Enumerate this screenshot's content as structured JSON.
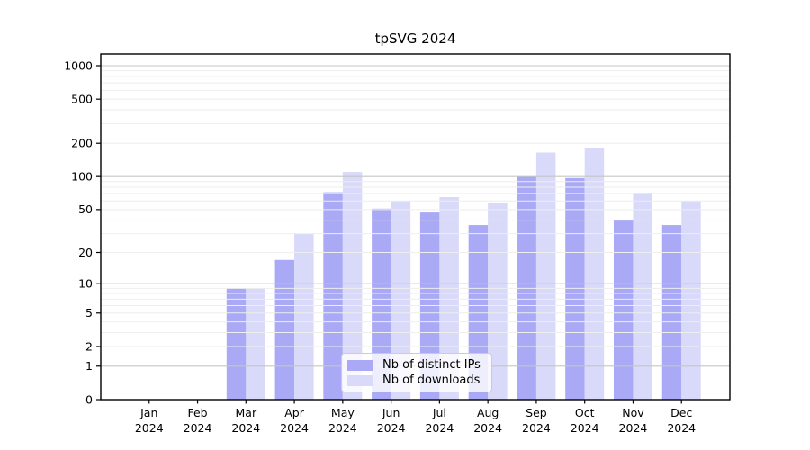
{
  "chart_data": {
    "type": "bar",
    "title": "tpSVG 2024",
    "categories": [
      "Jan",
      "Feb",
      "Mar",
      "Apr",
      "May",
      "Jun",
      "Jul",
      "Aug",
      "Sep",
      "Oct",
      "Nov",
      "Dec"
    ],
    "year_label": "2024",
    "series": [
      {
        "name": "Nb of distinct IPs",
        "color": "#a9a9f5",
        "values": [
          0,
          0,
          9,
          17,
          72,
          51,
          47,
          36,
          100,
          97,
          40,
          36
        ]
      },
      {
        "name": "Nb of downloads",
        "color": "#d9d9fa",
        "values": [
          0,
          0,
          9,
          30,
          110,
          60,
          65,
          57,
          165,
          180,
          70,
          60
        ]
      }
    ],
    "xlabel": "",
    "ylabel": "",
    "yscale": "log1p",
    "ylim": [
      0,
      1274
    ],
    "yticks": [
      0,
      1,
      2,
      5,
      10,
      20,
      50,
      100,
      200,
      500,
      1000
    ],
    "grid": {
      "major_values": [
        1,
        10,
        100,
        1000
      ],
      "major_color": "#c6c6c6",
      "minor_color": "#eeeeee"
    },
    "legend_position": "lower center",
    "axis_color": "#000000",
    "background_color": "#ffffff"
  }
}
